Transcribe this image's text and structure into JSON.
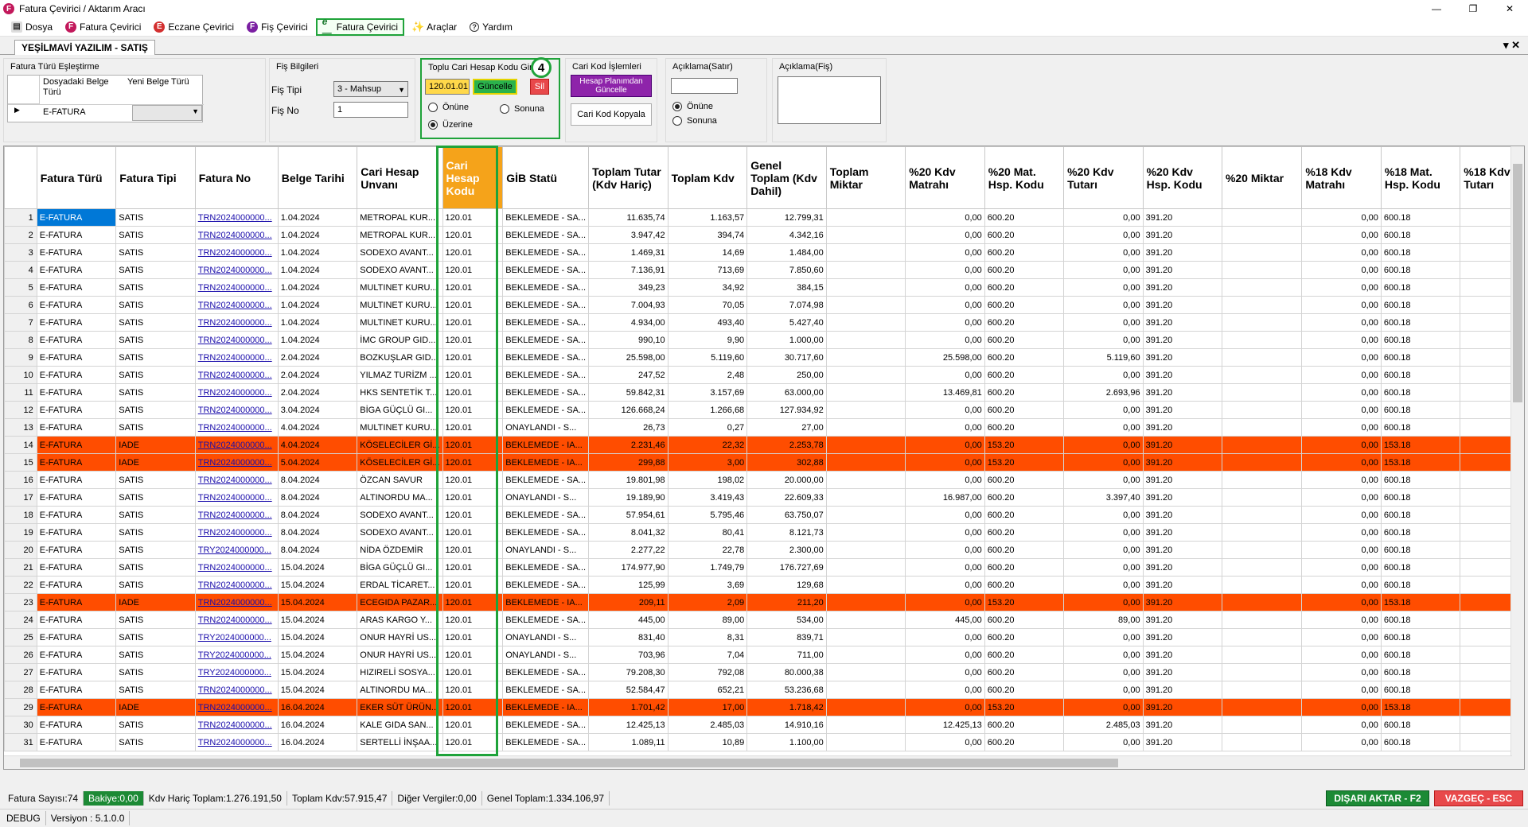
{
  "window": {
    "title": "Fatura Çevirici / Aktarım Aracı"
  },
  "menu": [
    "Dosya",
    "Fatura Çevirici",
    "Eczane Çevirici",
    "Fiş Çevirici",
    "Fatura Çevirici",
    "Araçlar",
    "Yardım"
  ],
  "tab": {
    "label": "YEŞİLMAVİ YAZILIM - SATIŞ"
  },
  "panel": {
    "fatura_turu": {
      "title": "Fatura Türü Eşleştirme",
      "col1": "Dosyadaki Belge Türü",
      "col2": "Yeni Belge Türü",
      "row_value": "E-FATURA"
    },
    "fis": {
      "title": "Fiş Bilgileri",
      "tipi_label": "Fiş Tipi",
      "tipi_value": "3 - Mahsup",
      "no_label": "Fiş No",
      "no_value": "1"
    },
    "toplu": {
      "title": "Toplu Cari Hesap Kodu Gir",
      "value": "120.01.01",
      "update_btn": "Güncelle",
      "delete_btn": "Sil",
      "opt1": "Önüne",
      "opt2": "Sonuna",
      "opt3": "Üzerine",
      "badge": "4"
    },
    "cari": {
      "title": "Cari Kod İşlemleri",
      "btn1": "Hesap Planımdan Güncelle",
      "btn2": "Cari Kod Kopyala"
    },
    "acik_satir": {
      "title": "Açıklama(Satır)",
      "opt1": "Önüne",
      "opt2": "Sonuna"
    },
    "acik_fis": {
      "title": "Açıklama(Fiş)"
    }
  },
  "grid": {
    "headers": [
      "Fatura Türü",
      "Fatura Tipi",
      "Fatura No",
      "Belge Tarihi",
      "Cari Hesap Unvanı",
      "Cari Hesap Kodu",
      "GİB Statü",
      "Toplam Tutar (Kdv Hariç)",
      "Toplam Kdv",
      "Genel Toplam (Kdv Dahil)",
      "Toplam Miktar",
      "%20 Kdv Matrahı",
      "%20 Mat. Hsp. Kodu",
      "%20 Kdv Tutarı",
      "%20 Kdv Hsp. Kodu",
      "%20 Miktar",
      "%18 Kdv Matrahı",
      "%18 Mat. Hsp. Kodu",
      "%18 Kdv Tutarı"
    ],
    "rows": [
      [
        "1",
        "E-FATURA",
        "SATIS",
        "TRN2024000000...",
        "1.04.2024",
        "METROPAL KUR...",
        "120.01",
        "BEKLEMEDE - SA...",
        "11.635,74",
        "1.163,57",
        "12.799,31",
        "",
        "0,00",
        "600.20",
        "0,00",
        "391.20",
        "",
        "0,00",
        "600.18",
        ""
      ],
      [
        "2",
        "E-FATURA",
        "SATIS",
        "TRN2024000000...",
        "1.04.2024",
        "METROPAL KUR...",
        "120.01",
        "BEKLEMEDE - SA...",
        "3.947,42",
        "394,74",
        "4.342,16",
        "",
        "0,00",
        "600.20",
        "0,00",
        "391.20",
        "",
        "0,00",
        "600.18",
        ""
      ],
      [
        "3",
        "E-FATURA",
        "SATIS",
        "TRN2024000000...",
        "1.04.2024",
        "SODEXO AVANT...",
        "120.01",
        "BEKLEMEDE - SA...",
        "1.469,31",
        "14,69",
        "1.484,00",
        "",
        "0,00",
        "600.20",
        "0,00",
        "391.20",
        "",
        "0,00",
        "600.18",
        ""
      ],
      [
        "4",
        "E-FATURA",
        "SATIS",
        "TRN2024000000...",
        "1.04.2024",
        "SODEXO AVANT...",
        "120.01",
        "BEKLEMEDE - SA...",
        "7.136,91",
        "713,69",
        "7.850,60",
        "",
        "0,00",
        "600.20",
        "0,00",
        "391.20",
        "",
        "0,00",
        "600.18",
        ""
      ],
      [
        "5",
        "E-FATURA",
        "SATIS",
        "TRN2024000000...",
        "1.04.2024",
        "MULTINET KURU...",
        "120.01",
        "BEKLEMEDE - SA...",
        "349,23",
        "34,92",
        "384,15",
        "",
        "0,00",
        "600.20",
        "0,00",
        "391.20",
        "",
        "0,00",
        "600.18",
        ""
      ],
      [
        "6",
        "E-FATURA",
        "SATIS",
        "TRN2024000000...",
        "1.04.2024",
        "MULTINET KURU...",
        "120.01",
        "BEKLEMEDE - SA...",
        "7.004,93",
        "70,05",
        "7.074,98",
        "",
        "0,00",
        "600.20",
        "0,00",
        "391.20",
        "",
        "0,00",
        "600.18",
        ""
      ],
      [
        "7",
        "E-FATURA",
        "SATIS",
        "TRN2024000000...",
        "1.04.2024",
        "MULTINET KURU...",
        "120.01",
        "BEKLEMEDE - SA...",
        "4.934,00",
        "493,40",
        "5.427,40",
        "",
        "0,00",
        "600.20",
        "0,00",
        "391.20",
        "",
        "0,00",
        "600.18",
        ""
      ],
      [
        "8",
        "E-FATURA",
        "SATIS",
        "TRN2024000000...",
        "1.04.2024",
        "İMC GROUP GID...",
        "120.01",
        "BEKLEMEDE - SA...",
        "990,10",
        "9,90",
        "1.000,00",
        "",
        "0,00",
        "600.20",
        "0,00",
        "391.20",
        "",
        "0,00",
        "600.18",
        ""
      ],
      [
        "9",
        "E-FATURA",
        "SATIS",
        "TRN2024000000...",
        "2.04.2024",
        "BOZKUŞLAR GID...",
        "120.01",
        "BEKLEMEDE - SA...",
        "25.598,00",
        "5.119,60",
        "30.717,60",
        "",
        "25.598,00",
        "600.20",
        "5.119,60",
        "391.20",
        "",
        "0,00",
        "600.18",
        ""
      ],
      [
        "10",
        "E-FATURA",
        "SATIS",
        "TRN2024000000...",
        "2.04.2024",
        "YILMAZ TURİZM ...",
        "120.01",
        "BEKLEMEDE - SA...",
        "247,52",
        "2,48",
        "250,00",
        "",
        "0,00",
        "600.20",
        "0,00",
        "391.20",
        "",
        "0,00",
        "600.18",
        ""
      ],
      [
        "11",
        "E-FATURA",
        "SATIS",
        "TRN2024000000...",
        "2.04.2024",
        "HKS SENTETİK T...",
        "120.01",
        "BEKLEMEDE - SA...",
        "59.842,31",
        "3.157,69",
        "63.000,00",
        "",
        "13.469,81",
        "600.20",
        "2.693,96",
        "391.20",
        "",
        "0,00",
        "600.18",
        ""
      ],
      [
        "12",
        "E-FATURA",
        "SATIS",
        "TRN2024000000...",
        "3.04.2024",
        "BİGA GÜÇLÜ GI...",
        "120.01",
        "BEKLEMEDE - SA...",
        "126.668,24",
        "1.266,68",
        "127.934,92",
        "",
        "0,00",
        "600.20",
        "0,00",
        "391.20",
        "",
        "0,00",
        "600.18",
        ""
      ],
      [
        "13",
        "E-FATURA",
        "SATIS",
        "TRN2024000000...",
        "4.04.2024",
        "MULTINET KURU...",
        "120.01",
        "ONAYLANDI - S...",
        "26,73",
        "0,27",
        "27,00",
        "",
        "0,00",
        "600.20",
        "0,00",
        "391.20",
        "",
        "0,00",
        "600.18",
        ""
      ],
      [
        "14",
        "E-FATURA",
        "IADE",
        "TRN2024000000...",
        "4.04.2024",
        "KÖSELECİLER Gİ...",
        "120.01",
        "BEKLEMEDE - IA...",
        "2.231,46",
        "22,32",
        "2.253,78",
        "",
        "0,00",
        "153.20",
        "0,00",
        "391.20",
        "",
        "0,00",
        "153.18",
        ""
      ],
      [
        "15",
        "E-FATURA",
        "IADE",
        "TRN2024000000...",
        "5.04.2024",
        "KÖSELECİLER Gİ...",
        "120.01",
        "BEKLEMEDE - IA...",
        "299,88",
        "3,00",
        "302,88",
        "",
        "0,00",
        "153.20",
        "0,00",
        "391.20",
        "",
        "0,00",
        "153.18",
        ""
      ],
      [
        "16",
        "E-FATURA",
        "SATIS",
        "TRN2024000000...",
        "8.04.2024",
        "ÖZCAN SAVUR",
        "120.01",
        "BEKLEMEDE - SA...",
        "19.801,98",
        "198,02",
        "20.000,00",
        "",
        "0,00",
        "600.20",
        "0,00",
        "391.20",
        "",
        "0,00",
        "600.18",
        ""
      ],
      [
        "17",
        "E-FATURA",
        "SATIS",
        "TRN2024000000...",
        "8.04.2024",
        "ALTINORDU MA...",
        "120.01",
        "ONAYLANDI - S...",
        "19.189,90",
        "3.419,43",
        "22.609,33",
        "",
        "16.987,00",
        "600.20",
        "3.397,40",
        "391.20",
        "",
        "0,00",
        "600.18",
        ""
      ],
      [
        "18",
        "E-FATURA",
        "SATIS",
        "TRN2024000000...",
        "8.04.2024",
        "SODEXO AVANT...",
        "120.01",
        "BEKLEMEDE - SA...",
        "57.954,61",
        "5.795,46",
        "63.750,07",
        "",
        "0,00",
        "600.20",
        "0,00",
        "391.20",
        "",
        "0,00",
        "600.18",
        ""
      ],
      [
        "19",
        "E-FATURA",
        "SATIS",
        "TRN2024000000...",
        "8.04.2024",
        "SODEXO AVANT...",
        "120.01",
        "BEKLEMEDE - SA...",
        "8.041,32",
        "80,41",
        "8.121,73",
        "",
        "0,00",
        "600.20",
        "0,00",
        "391.20",
        "",
        "0,00",
        "600.18",
        ""
      ],
      [
        "20",
        "E-FATURA",
        "SATIS",
        "TRY2024000000...",
        "8.04.2024",
        "NİDA ÖZDEMİR",
        "120.01",
        "ONAYLANDI - S...",
        "2.277,22",
        "22,78",
        "2.300,00",
        "",
        "0,00",
        "600.20",
        "0,00",
        "391.20",
        "",
        "0,00",
        "600.18",
        ""
      ],
      [
        "21",
        "E-FATURA",
        "SATIS",
        "TRN2024000000...",
        "15.04.2024",
        "BİGA GÜÇLÜ GI...",
        "120.01",
        "BEKLEMEDE - SA...",
        "174.977,90",
        "1.749,79",
        "176.727,69",
        "",
        "0,00",
        "600.20",
        "0,00",
        "391.20",
        "",
        "0,00",
        "600.18",
        ""
      ],
      [
        "22",
        "E-FATURA",
        "SATIS",
        "TRN2024000000...",
        "15.04.2024",
        "ERDAL TİCARET...",
        "120.01",
        "BEKLEMEDE - SA...",
        "125,99",
        "3,69",
        "129,68",
        "",
        "0,00",
        "600.20",
        "0,00",
        "391.20",
        "",
        "0,00",
        "600.18",
        ""
      ],
      [
        "23",
        "E-FATURA",
        "IADE",
        "TRN2024000000...",
        "15.04.2024",
        "ECEGIDA PAZAR...",
        "120.01",
        "BEKLEMEDE - IA...",
        "209,11",
        "2,09",
        "211,20",
        "",
        "0,00",
        "153.20",
        "0,00",
        "391.20",
        "",
        "0,00",
        "153.18",
        ""
      ],
      [
        "24",
        "E-FATURA",
        "SATIS",
        "TRN2024000000...",
        "15.04.2024",
        "ARAS KARGO Y...",
        "120.01",
        "BEKLEMEDE - SA...",
        "445,00",
        "89,00",
        "534,00",
        "",
        "445,00",
        "600.20",
        "89,00",
        "391.20",
        "",
        "0,00",
        "600.18",
        ""
      ],
      [
        "25",
        "E-FATURA",
        "SATIS",
        "TRY2024000000...",
        "15.04.2024",
        "ONUR HAYRİ US...",
        "120.01",
        "ONAYLANDI - S...",
        "831,40",
        "8,31",
        "839,71",
        "",
        "0,00",
        "600.20",
        "0,00",
        "391.20",
        "",
        "0,00",
        "600.18",
        ""
      ],
      [
        "26",
        "E-FATURA",
        "SATIS",
        "TRY2024000000...",
        "15.04.2024",
        "ONUR HAYRİ US...",
        "120.01",
        "ONAYLANDI - S...",
        "703,96",
        "7,04",
        "711,00",
        "",
        "0,00",
        "600.20",
        "0,00",
        "391.20",
        "",
        "0,00",
        "600.18",
        ""
      ],
      [
        "27",
        "E-FATURA",
        "SATIS",
        "TRY2024000000...",
        "15.04.2024",
        "HIZIRELİ SOSYA...",
        "120.01",
        "BEKLEMEDE - SA...",
        "79.208,30",
        "792,08",
        "80.000,38",
        "",
        "0,00",
        "600.20",
        "0,00",
        "391.20",
        "",
        "0,00",
        "600.18",
        ""
      ],
      [
        "28",
        "E-FATURA",
        "SATIS",
        "TRN2024000000...",
        "15.04.2024",
        "ALTINORDU MA...",
        "120.01",
        "BEKLEMEDE - SA...",
        "52.584,47",
        "652,21",
        "53.236,68",
        "",
        "0,00",
        "600.20",
        "0,00",
        "391.20",
        "",
        "0,00",
        "600.18",
        ""
      ],
      [
        "29",
        "E-FATURA",
        "IADE",
        "TRN2024000000...",
        "16.04.2024",
        "EKER SÜT ÜRÜN...",
        "120.01",
        "BEKLEMEDE - IA...",
        "1.701,42",
        "17,00",
        "1.718,42",
        "",
        "0,00",
        "153.20",
        "0,00",
        "391.20",
        "",
        "0,00",
        "153.18",
        ""
      ],
      [
        "30",
        "E-FATURA",
        "SATIS",
        "TRN2024000000...",
        "16.04.2024",
        "KALE GIDA SAN...",
        "120.01",
        "BEKLEMEDE - SA...",
        "12.425,13",
        "2.485,03",
        "14.910,16",
        "",
        "12.425,13",
        "600.20",
        "2.485,03",
        "391.20",
        "",
        "0,00",
        "600.18",
        ""
      ],
      [
        "31",
        "E-FATURA",
        "SATIS",
        "TRN2024000000...",
        "16.04.2024",
        "SERTELLİ İNŞAA...",
        "120.01",
        "BEKLEMEDE - SA...",
        "1.089,11",
        "10,89",
        "1.100,00",
        "",
        "0,00",
        "600.20",
        "0,00",
        "391.20",
        "",
        "0,00",
        "600.18",
        ""
      ]
    ]
  },
  "status": {
    "fatura_sayisi": "Fatura Sayısı:74",
    "bakiye": "Bakiye:0,00",
    "kdv_haric": "Kdv Hariç Toplam:1.276.191,50",
    "toplam_kdv": "Toplam Kdv:57.915,47",
    "diger": "Diğer Vergiler:0,00",
    "genel": "Genel Toplam:1.334.106,97",
    "export_btn": "DIŞARI AKTAR - F2",
    "cancel_btn": "VAZGEÇ - ESC",
    "debug": "DEBUG",
    "version": "Versiyon : 5.1.0.0"
  },
  "colors": {
    "accent_green": "#1fa33a",
    "iade_row": "#ff4d00",
    "selected": "#0078d7",
    "header_highlight": "#f5a31a",
    "cancel": "#e8494b"
  }
}
